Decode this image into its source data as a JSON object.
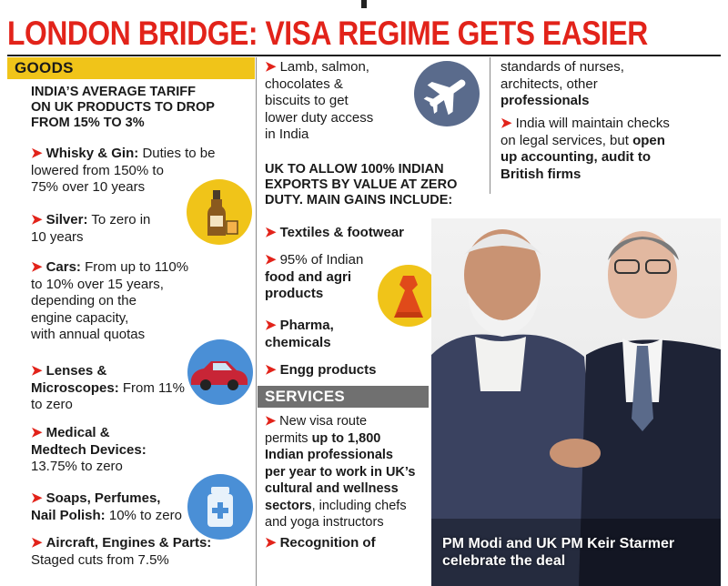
{
  "headline": "LONDON BRIDGE: VISA REGIME GETS EASIER",
  "goods": {
    "heading": "GOODS",
    "lead": [
      "INDIA’S AVERAGE TARIFF",
      "ON UK PRODUCTS TO DROP",
      "FROM 15% TO 3%"
    ],
    "items": [
      {
        "bold": "Whisky & Gin:",
        "lines": [
          "Duties to be",
          "lowered from 150% to",
          "75% over 10 years"
        ]
      },
      {
        "bold": "Silver:",
        "lines": [
          "To zero in",
          "10 years"
        ]
      },
      {
        "bold": "Cars:",
        "lines": [
          "From up to 110%",
          "to 10% over 15 years,",
          "depending on the",
          "engine capacity,",
          "with annual quotas"
        ]
      },
      {
        "bold_lines": [
          "Lenses &",
          "Microscopes:"
        ],
        "text": "From 11%",
        "lines": [
          "to zero"
        ]
      },
      {
        "bold_lines": [
          "Medical &",
          "Medtech Devices:"
        ],
        "lines": [
          "13.75% to zero"
        ]
      },
      {
        "bold_lines": [
          "Soaps, Perfumes,",
          "Nail Polish:"
        ],
        "text": "10% to zero"
      },
      {
        "bold": "Aircraft, Engines & Parts:",
        "lines": [
          "Staged cuts from 7.5%"
        ]
      }
    ]
  },
  "middle": {
    "lamb": [
      "Lamb, salmon,",
      "chocolates &",
      "biscuits to get",
      "lower duty access",
      "in India"
    ],
    "lead": [
      "UK TO ALLOW 100% INDIAN",
      "EXPORTS BY VALUE AT ZERO",
      "DUTY. MAIN GAINS INCLUDE:"
    ],
    "textiles": "Textiles & footwear",
    "food": [
      "95% of Indian",
      "food and agri",
      "products"
    ],
    "pharma": [
      "Pharma,",
      "chemicals"
    ],
    "engg": "Engg products",
    "services_heading": "SERVICES",
    "visa": [
      "New visa route",
      "permits",
      "up to 1,800",
      "Indian professionals",
      "per year to work in UK’s",
      "cultural and wellness",
      "sectors",
      ", including chefs",
      "and yoga instructors"
    ],
    "recognition": "Recognition of"
  },
  "right": {
    "cont": [
      "standards of nurses,",
      "architects, other",
      "professionals"
    ],
    "checks": [
      "India will maintain checks",
      "on legal services, but",
      "open",
      "up accounting, audit to",
      "British firms"
    ]
  },
  "photo": {
    "caption": [
      "PM Modi and UK PM Keir Starmer",
      "celebrate the deal"
    ]
  },
  "icons": [
    "bottle-glass-icon",
    "car-icon",
    "medicine-bottle-icon",
    "airplane-icon",
    "dress-icon"
  ],
  "colors": {
    "accent": "#e2231a",
    "goods_header": "#f0c419",
    "services_header": "#707070",
    "icon_yellow": "#f0c419",
    "icon_blue": "#4a8fd6",
    "icon_grey": "#5a6b8c"
  }
}
